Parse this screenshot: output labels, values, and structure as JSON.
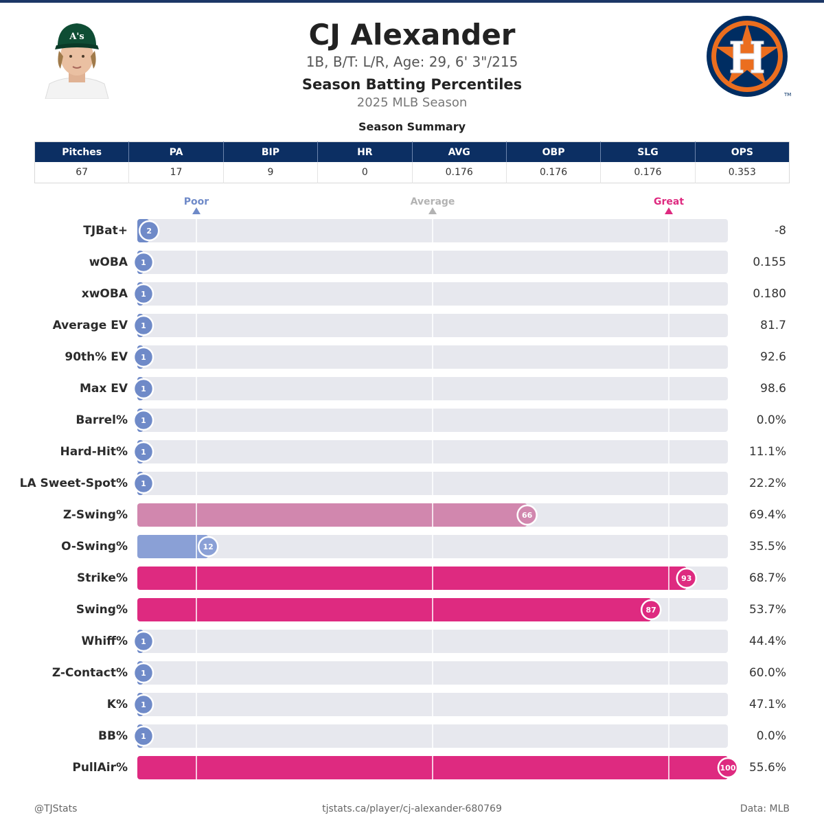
{
  "header": {
    "player_name": "CJ Alexander",
    "bio": "1B, B/T: L/R, Age: 29, 6' 3\"/215",
    "title": "Season Batting Percentiles",
    "season": "2025 MLB Season",
    "summary_title": "Season Summary"
  },
  "summary_table": {
    "columns": [
      "Pitches",
      "PA",
      "BIP",
      "HR",
      "AVG",
      "OBP",
      "SLG",
      "OPS"
    ],
    "values": [
      "67",
      "17",
      "9",
      "0",
      "0.176",
      "0.176",
      "0.176",
      "0.353"
    ]
  },
  "scale": {
    "poor": "Poor",
    "average": "Average",
    "great": "Great"
  },
  "colors": {
    "poor": "#6f8ac8",
    "below_average": "#8aa0d6",
    "above_average": "#d187ae",
    "great": "#de2a80",
    "track": "#e7e8ee",
    "header_bg": "#0c2f63",
    "logo_navy": "#002d62",
    "logo_orange": "#eb6e1f"
  },
  "chart_data": {
    "type": "bar",
    "orientation": "horizontal",
    "categories": [
      "TJBat+",
      "wOBA",
      "xwOBA",
      "Average EV",
      "90th% EV",
      "Max EV",
      "Barrel%",
      "Hard-Hit%",
      "LA Sweet-Spot%",
      "Z-Swing%",
      "O-Swing%",
      "Strike%",
      "Swing%",
      "Whiff%",
      "Z-Contact%",
      "K%",
      "BB%",
      "PullAir%"
    ],
    "percentiles": [
      2,
      1,
      1,
      1,
      1,
      1,
      1,
      1,
      1,
      66,
      12,
      93,
      87,
      1,
      1,
      1,
      1,
      100
    ],
    "stat_values": [
      "-8",
      "0.155",
      "0.180",
      "81.7",
      "92.6",
      "98.6",
      "0.0%",
      "11.1%",
      "22.2%",
      "69.4%",
      "35.5%",
      "68.7%",
      "53.7%",
      "44.4%",
      "60.0%",
      "47.1%",
      "0.0%",
      "55.6%"
    ],
    "xlim": [
      0,
      100
    ],
    "reference_lines": [
      10,
      50,
      90
    ]
  },
  "footer": {
    "left": "@TJStats",
    "center": "tjstats.ca/player/cj-alexander-680769",
    "right": "Data: MLB"
  }
}
